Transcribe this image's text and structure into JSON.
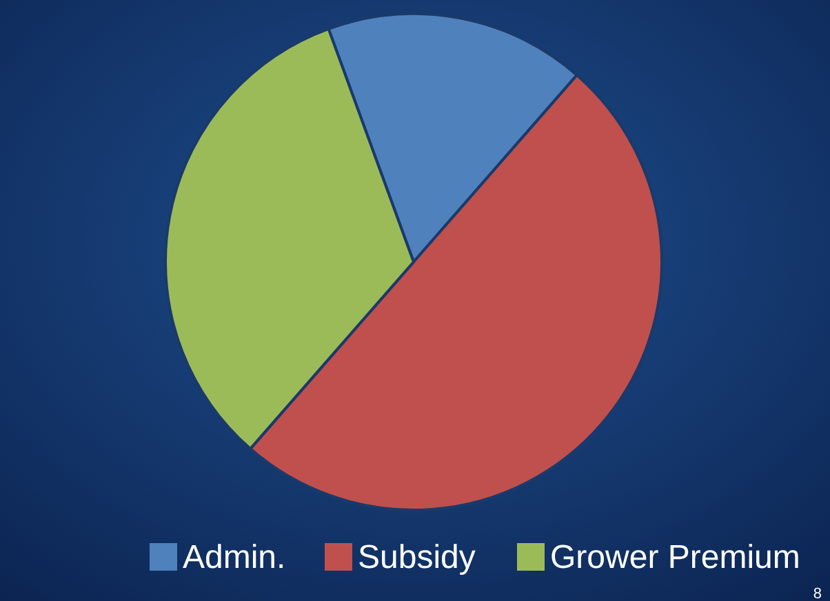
{
  "chart_data": {
    "type": "pie",
    "categories": [
      "Admin.",
      "Subsidy",
      "Grower Premium"
    ],
    "values": [
      17,
      50,
      33
    ],
    "colors": [
      "#4f81bd",
      "#c0504d",
      "#9bbb59"
    ],
    "legend": "bottom",
    "annotations": [
      "8"
    ]
  }
}
